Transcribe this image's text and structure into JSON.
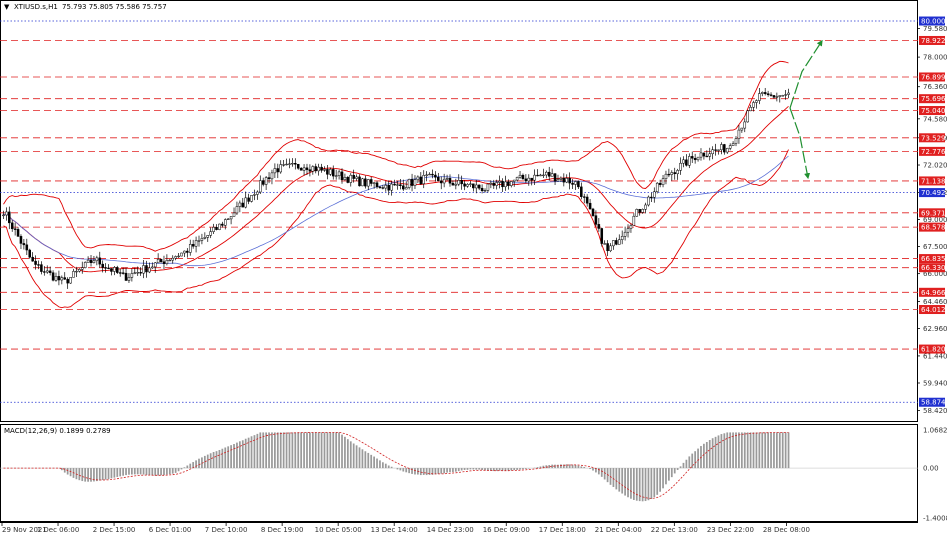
{
  "header": {
    "menu_glyph": "▼",
    "symbol_info": "XTIUSD.s,H1",
    "ohlc": "75.793 75.805 75.586 75.757"
  },
  "macd": {
    "label": "MACD(12,26,9) 0.1899 0.2789",
    "axis_labels": [
      "1.0682",
      "0.00",
      "-1.4008"
    ]
  },
  "colors": {
    "candle": "#000000",
    "bollinger": "#e00000",
    "ma": "#5b6fd6",
    "resistance_tag": "#e02020",
    "blue_tag": "#2030d0",
    "arrow": "#1f8f2f",
    "histogram": "#9a9a9a",
    "signal": "#d02020"
  },
  "chart_data": {
    "type": "candlestick",
    "symbol": "XTIUSD.s",
    "timeframe": "H1",
    "ylim": [
      58.0,
      80.5
    ],
    "y_ticks": [
      "79.580",
      "78.000",
      "76.360",
      "74.580",
      "73.529",
      "72.020",
      "70.492",
      "69.000",
      "67.500",
      "66.000",
      "64.460",
      "62.960",
      "61.440",
      "59.940",
      "58.420"
    ],
    "x_ticks": [
      "29 Nov 2021",
      "1 Dec 06:00",
      "2 Dec 15:00",
      "6 Dec 01:00",
      "7 Dec 10:00",
      "8 Dec 19:00",
      "10 Dec 05:00",
      "13 Dec 14:00",
      "14 Dec 23:00",
      "16 Dec 09:00",
      "17 Dec 18:00",
      "21 Dec 04:00",
      "22 Dec 13:00",
      "23 Dec 22:00",
      "28 Dec 08:00"
    ],
    "close_path": [
      69.5,
      66.5,
      65.5,
      66.8,
      65.8,
      66.5,
      67.2,
      68.4,
      70.0,
      71.8,
      72.0,
      71.5,
      71.0,
      70.8,
      71.3,
      71.0,
      70.7,
      71.2,
      71.5,
      71.0,
      67.2,
      69.4,
      71.5,
      72.6,
      73.0,
      75.8,
      75.9
    ],
    "levels": [
      {
        "value": "80.000",
        "kind": "blue"
      },
      {
        "value": "78.922",
        "kind": "red"
      },
      {
        "value": "76.899",
        "kind": "red"
      },
      {
        "value": "75.696",
        "kind": "red"
      },
      {
        "value": "75.040",
        "kind": "red"
      },
      {
        "value": "73.529",
        "kind": "red"
      },
      {
        "value": "72.776",
        "kind": "red"
      },
      {
        "value": "71.138",
        "kind": "red"
      },
      {
        "value": "70.492",
        "kind": "blue"
      },
      {
        "value": "69.371",
        "kind": "red"
      },
      {
        "value": "68.578",
        "kind": "red"
      },
      {
        "value": "66.835",
        "kind": "red"
      },
      {
        "value": "66.330",
        "kind": "red"
      },
      {
        "value": "64.966",
        "kind": "red"
      },
      {
        "value": "64.012",
        "kind": "red"
      },
      {
        "value": "61.820",
        "kind": "red"
      },
      {
        "value": "58.874",
        "kind": "blue"
      }
    ]
  }
}
